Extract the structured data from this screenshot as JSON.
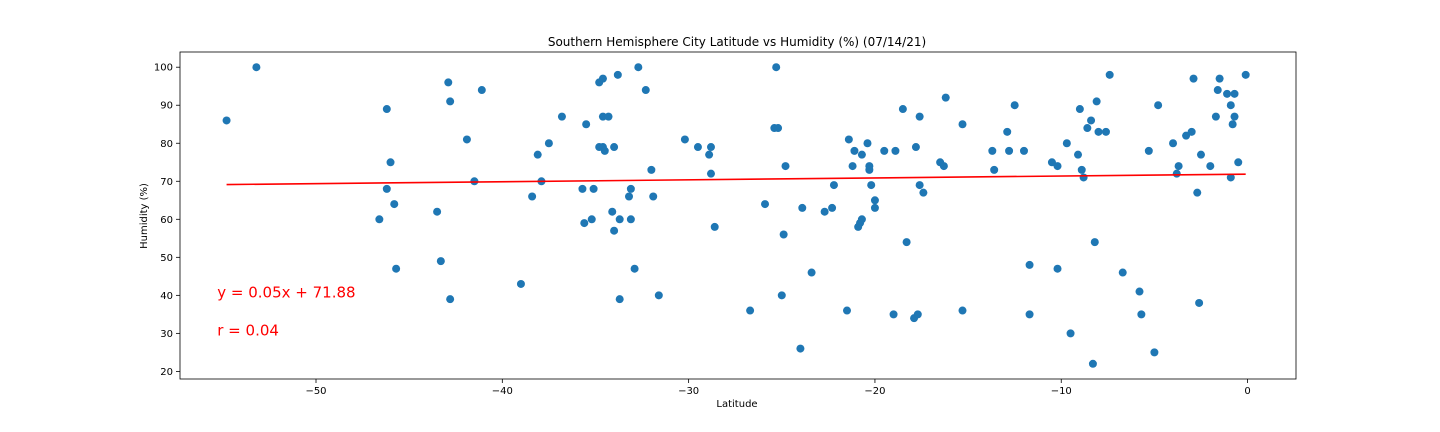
{
  "chart_data": {
    "type": "scatter",
    "title": "Southern Hemisphere City Latitude vs Humidity (%) (07/14/21)",
    "xlabel": "Latitude",
    "ylabel": "Humidity (%)",
    "xlim": [
      -57.3,
      2.6
    ],
    "ylim": [
      18,
      104
    ],
    "xticks": [
      -50,
      -40,
      -30,
      -20,
      -10,
      0
    ],
    "yticks": [
      20,
      30,
      40,
      50,
      60,
      70,
      80,
      90,
      100
    ],
    "grid": false,
    "point_color": "#1f77b4",
    "line_color": "#ff0000",
    "points": [
      {
        "x": -54.8,
        "y": 86
      },
      {
        "x": -53.2,
        "y": 100
      },
      {
        "x": -46.6,
        "y": 60
      },
      {
        "x": -46.2,
        "y": 89
      },
      {
        "x": -46.2,
        "y": 68
      },
      {
        "x": -46.0,
        "y": 75
      },
      {
        "x": -45.8,
        "y": 64
      },
      {
        "x": -45.7,
        "y": 47
      },
      {
        "x": -43.5,
        "y": 62
      },
      {
        "x": -43.3,
        "y": 49
      },
      {
        "x": -42.9,
        "y": 96
      },
      {
        "x": -42.8,
        "y": 91
      },
      {
        "x": -42.8,
        "y": 39
      },
      {
        "x": -41.9,
        "y": 81
      },
      {
        "x": -41.5,
        "y": 70
      },
      {
        "x": -41.1,
        "y": 94
      },
      {
        "x": -39.0,
        "y": 43
      },
      {
        "x": -38.4,
        "y": 66
      },
      {
        "x": -38.1,
        "y": 77
      },
      {
        "x": -37.9,
        "y": 70
      },
      {
        "x": -37.5,
        "y": 80
      },
      {
        "x": -36.8,
        "y": 87
      },
      {
        "x": -35.7,
        "y": 68
      },
      {
        "x": -35.6,
        "y": 59
      },
      {
        "x": -35.5,
        "y": 85
      },
      {
        "x": -35.2,
        "y": 60
      },
      {
        "x": -35.1,
        "y": 68
      },
      {
        "x": -34.8,
        "y": 96
      },
      {
        "x": -34.8,
        "y": 79
      },
      {
        "x": -34.6,
        "y": 97
      },
      {
        "x": -34.6,
        "y": 87
      },
      {
        "x": -34.6,
        "y": 79
      },
      {
        "x": -34.5,
        "y": 78
      },
      {
        "x": -34.3,
        "y": 87
      },
      {
        "x": -34.1,
        "y": 62
      },
      {
        "x": -34.0,
        "y": 79
      },
      {
        "x": -34.0,
        "y": 57
      },
      {
        "x": -33.8,
        "y": 98
      },
      {
        "x": -33.7,
        "y": 60
      },
      {
        "x": -33.7,
        "y": 39
      },
      {
        "x": -33.2,
        "y": 66
      },
      {
        "x": -33.1,
        "y": 68
      },
      {
        "x": -33.1,
        "y": 60
      },
      {
        "x": -32.9,
        "y": 47
      },
      {
        "x": -32.7,
        "y": 100
      },
      {
        "x": -32.3,
        "y": 94
      },
      {
        "x": -32.0,
        "y": 73
      },
      {
        "x": -31.9,
        "y": 66
      },
      {
        "x": -31.6,
        "y": 40
      },
      {
        "x": -30.2,
        "y": 81
      },
      {
        "x": -29.5,
        "y": 79
      },
      {
        "x": -28.9,
        "y": 77
      },
      {
        "x": -28.8,
        "y": 79
      },
      {
        "x": -28.8,
        "y": 72
      },
      {
        "x": -28.6,
        "y": 58
      },
      {
        "x": -26.7,
        "y": 36
      },
      {
        "x": -25.9,
        "y": 64
      },
      {
        "x": -25.4,
        "y": 84
      },
      {
        "x": -25.3,
        "y": 100
      },
      {
        "x": -25.2,
        "y": 84
      },
      {
        "x": -25.0,
        "y": 40
      },
      {
        "x": -24.9,
        "y": 56
      },
      {
        "x": -24.8,
        "y": 74
      },
      {
        "x": -24.0,
        "y": 26
      },
      {
        "x": -23.9,
        "y": 63
      },
      {
        "x": -23.4,
        "y": 46
      },
      {
        "x": -22.7,
        "y": 62
      },
      {
        "x": -22.3,
        "y": 63
      },
      {
        "x": -22.2,
        "y": 69
      },
      {
        "x": -21.5,
        "y": 36
      },
      {
        "x": -21.4,
        "y": 81
      },
      {
        "x": -21.2,
        "y": 74
      },
      {
        "x": -21.1,
        "y": 78
      },
      {
        "x": -20.9,
        "y": 58
      },
      {
        "x": -20.8,
        "y": 59
      },
      {
        "x": -20.7,
        "y": 77
      },
      {
        "x": -20.7,
        "y": 60
      },
      {
        "x": -20.4,
        "y": 80
      },
      {
        "x": -20.3,
        "y": 73
      },
      {
        "x": -20.3,
        "y": 74
      },
      {
        "x": -20.2,
        "y": 69
      },
      {
        "x": -20.0,
        "y": 65
      },
      {
        "x": -20.0,
        "y": 63
      },
      {
        "x": -19.5,
        "y": 78
      },
      {
        "x": -19.0,
        "y": 35
      },
      {
        "x": -18.9,
        "y": 78
      },
      {
        "x": -18.5,
        "y": 89
      },
      {
        "x": -18.3,
        "y": 54
      },
      {
        "x": -17.9,
        "y": 34
      },
      {
        "x": -17.8,
        "y": 79
      },
      {
        "x": -17.7,
        "y": 35
      },
      {
        "x": -17.6,
        "y": 87
      },
      {
        "x": -17.6,
        "y": 69
      },
      {
        "x": -17.4,
        "y": 67
      },
      {
        "x": -16.5,
        "y": 75
      },
      {
        "x": -16.3,
        "y": 74
      },
      {
        "x": -16.2,
        "y": 92
      },
      {
        "x": -15.3,
        "y": 85
      },
      {
        "x": -15.3,
        "y": 36
      },
      {
        "x": -13.7,
        "y": 78
      },
      {
        "x": -13.6,
        "y": 73
      },
      {
        "x": -12.9,
        "y": 83
      },
      {
        "x": -12.8,
        "y": 78
      },
      {
        "x": -12.5,
        "y": 90
      },
      {
        "x": -12.0,
        "y": 78
      },
      {
        "x": -11.7,
        "y": 48
      },
      {
        "x": -11.7,
        "y": 35
      },
      {
        "x": -10.5,
        "y": 75
      },
      {
        "x": -10.2,
        "y": 47
      },
      {
        "x": -10.2,
        "y": 74
      },
      {
        "x": -9.7,
        "y": 80
      },
      {
        "x": -9.5,
        "y": 30
      },
      {
        "x": -9.1,
        "y": 77
      },
      {
        "x": -9.0,
        "y": 89
      },
      {
        "x": -8.9,
        "y": 73
      },
      {
        "x": -8.8,
        "y": 71
      },
      {
        "x": -8.6,
        "y": 84
      },
      {
        "x": -8.4,
        "y": 86
      },
      {
        "x": -8.3,
        "y": 22
      },
      {
        "x": -8.2,
        "y": 54
      },
      {
        "x": -8.0,
        "y": 83
      },
      {
        "x": -8.1,
        "y": 91
      },
      {
        "x": -7.6,
        "y": 83
      },
      {
        "x": -7.4,
        "y": 98
      },
      {
        "x": -6.7,
        "y": 46
      },
      {
        "x": -5.8,
        "y": 41
      },
      {
        "x": -5.7,
        "y": 35
      },
      {
        "x": -5.3,
        "y": 78
      },
      {
        "x": -5.0,
        "y": 25
      },
      {
        "x": -4.8,
        "y": 90
      },
      {
        "x": -4.0,
        "y": 80
      },
      {
        "x": -3.8,
        "y": 72
      },
      {
        "x": -3.7,
        "y": 74
      },
      {
        "x": -3.3,
        "y": 82
      },
      {
        "x": -3.0,
        "y": 83
      },
      {
        "x": -2.9,
        "y": 97
      },
      {
        "x": -2.7,
        "y": 67
      },
      {
        "x": -2.6,
        "y": 38
      },
      {
        "x": -2.5,
        "y": 77
      },
      {
        "x": -2.0,
        "y": 74
      },
      {
        "x": -1.7,
        "y": 87
      },
      {
        "x": -1.6,
        "y": 94
      },
      {
        "x": -1.5,
        "y": 97
      },
      {
        "x": -1.1,
        "y": 93
      },
      {
        "x": -0.9,
        "y": 71
      },
      {
        "x": -0.9,
        "y": 90
      },
      {
        "x": -0.8,
        "y": 85
      },
      {
        "x": -0.7,
        "y": 93
      },
      {
        "x": -0.7,
        "y": 87
      },
      {
        "x": -0.5,
        "y": 75
      },
      {
        "x": -0.1,
        "y": 98
      }
    ],
    "regression": {
      "slope": 0.05,
      "intercept": 71.88,
      "x_range": [
        -54.8,
        -0.1
      ]
    },
    "annotations": [
      {
        "text": "y = 0.05x + 71.88",
        "x": -55.3,
        "y": 39.5,
        "color": "#ff0000"
      },
      {
        "text": "r = 0.04",
        "x": -55.3,
        "y": 29.5,
        "color": "#ff0000"
      }
    ]
  }
}
